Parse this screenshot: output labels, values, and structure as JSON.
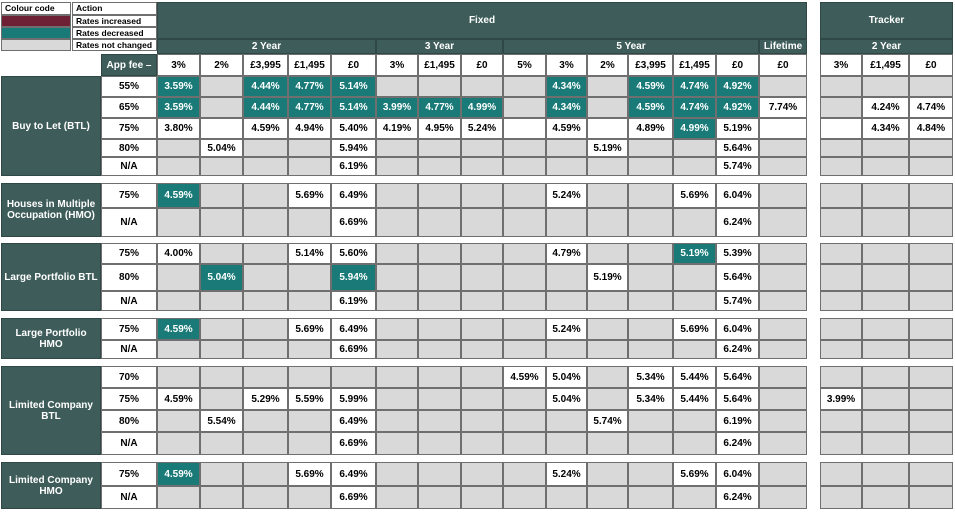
{
  "legend": {
    "header_col1": "Colour code",
    "header_col2": "Action",
    "items": [
      {
        "label": "Rates increased",
        "color": "#6e2134"
      },
      {
        "label": "Rates decreased",
        "color": "#197a78"
      },
      {
        "label": "Rates not changed",
        "color": "#d9d9d9"
      }
    ]
  },
  "header": {
    "fixed": "Fixed",
    "tracker": "Tracker",
    "app_fee_label": "App fee –",
    "fixed_groups": [
      "2 Year",
      "3 Year",
      "5 Year",
      "Lifetime"
    ],
    "tracker_groups": [
      "2 Year"
    ],
    "fixed_fees": [
      "3%",
      "2%",
      "£3,995",
      "£1,495",
      "£0",
      "3%",
      "£1,495",
      "£0",
      "5%",
      "3%",
      "2%",
      "£3,995",
      "£1,495",
      "£0",
      "£0"
    ],
    "tracker_fees": [
      "3%",
      "£1,495",
      "£0"
    ]
  },
  "colors": {
    "header": "#3e5d5a",
    "decreased": "#197a78",
    "increased": "#6e2134",
    "unchanged": "#d9d9d9"
  },
  "sections": [
    {
      "name": "Buy to Let (BTL)",
      "rows": [
        {
          "ltv": "55%",
          "fixed": [
            "3.59%",
            "",
            "4.44%",
            "4.77%",
            "5.14%",
            "",
            "",
            "",
            "",
            "4.34%",
            "",
            "4.59%",
            "4.74%",
            "4.92%",
            ""
          ],
          "fixed_state": [
            "d",
            "g",
            "d",
            "d",
            "d",
            "g",
            "g",
            "g",
            "g",
            "d",
            "g",
            "d",
            "d",
            "d",
            "g"
          ],
          "tracker": [
            "",
            "",
            ""
          ],
          "tracker_state": [
            "g",
            "g",
            "g"
          ]
        },
        {
          "ltv": "65%",
          "fixed": [
            "3.59%",
            "",
            "4.44%",
            "4.77%",
            "5.14%",
            "3.99%",
            "4.77%",
            "4.99%",
            "",
            "4.34%",
            "",
            "4.59%",
            "4.74%",
            "4.92%",
            "7.74%"
          ],
          "fixed_state": [
            "d",
            "g",
            "d",
            "d",
            "d",
            "d",
            "d",
            "d",
            "g",
            "d",
            "g",
            "d",
            "d",
            "d",
            "w"
          ],
          "tracker": [
            "",
            "4.24%",
            "4.74%"
          ],
          "tracker_state": [
            "g",
            "w",
            "w"
          ]
        },
        {
          "ltv": "75%",
          "fixed": [
            "3.80%",
            "",
            "4.59%",
            "4.94%",
            "5.40%",
            "4.19%",
            "4.95%",
            "5.24%",
            "",
            "4.59%",
            "",
            "4.89%",
            "4.99%",
            "5.19%",
            ""
          ],
          "fixed_state": [
            "w",
            "w",
            "w",
            "w",
            "w",
            "w",
            "w",
            "w",
            "w",
            "w",
            "w",
            "w",
            "d",
            "w",
            "w"
          ],
          "tracker": [
            "",
            "4.34%",
            "4.84%"
          ],
          "tracker_state": [
            "w",
            "w",
            "w"
          ]
        },
        {
          "ltv": "80%",
          "fixed": [
            "",
            "5.04%",
            "",
            "",
            "5.94%",
            "",
            "",
            "",
            "",
            "",
            "5.19%",
            "",
            "",
            "5.64%",
            ""
          ],
          "fixed_state": [
            "g",
            "w",
            "g",
            "g",
            "w",
            "g",
            "g",
            "g",
            "g",
            "g",
            "w",
            "g",
            "g",
            "w",
            "g"
          ],
          "tracker": [
            "",
            "",
            ""
          ],
          "tracker_state": [
            "g",
            "g",
            "g"
          ]
        },
        {
          "ltv": "N/A",
          "fixed": [
            "",
            "",
            "",
            "",
            "6.19%",
            "",
            "",
            "",
            "",
            "",
            "",
            "",
            "",
            "5.74%",
            ""
          ],
          "fixed_state": [
            "g",
            "g",
            "g",
            "g",
            "w",
            "g",
            "g",
            "g",
            "g",
            "g",
            "g",
            "g",
            "g",
            "w",
            "g"
          ],
          "tracker": [
            "",
            "",
            ""
          ],
          "tracker_state": [
            "g",
            "g",
            "g"
          ]
        }
      ]
    },
    {
      "name": "Houses in Multiple Occupation (HMO)",
      "rows": [
        {
          "ltv": "75%",
          "fixed": [
            "4.59%",
            "",
            "",
            "5.69%",
            "6.49%",
            "",
            "",
            "",
            "",
            "5.24%",
            "",
            "",
            "5.69%",
            "6.04%",
            ""
          ],
          "fixed_state": [
            "d",
            "g",
            "g",
            "w",
            "w",
            "g",
            "g",
            "g",
            "g",
            "w",
            "g",
            "g",
            "w",
            "w",
            "g"
          ],
          "tracker": [
            "",
            "",
            ""
          ],
          "tracker_state": [
            "g",
            "g",
            "g"
          ]
        },
        {
          "ltv": "N/A",
          "fixed": [
            "",
            "",
            "",
            "",
            "6.69%",
            "",
            "",
            "",
            "",
            "",
            "",
            "",
            "",
            "6.24%",
            ""
          ],
          "fixed_state": [
            "g",
            "g",
            "g",
            "g",
            "w",
            "g",
            "g",
            "g",
            "g",
            "g",
            "g",
            "g",
            "g",
            "w",
            "g"
          ],
          "tracker": [
            "",
            "",
            ""
          ],
          "tracker_state": [
            "g",
            "g",
            "g"
          ]
        }
      ]
    },
    {
      "name": "Large Portfolio BTL",
      "rows": [
        {
          "ltv": "75%",
          "fixed": [
            "4.00%",
            "",
            "",
            "5.14%",
            "5.60%",
            "",
            "",
            "",
            "",
            "4.79%",
            "",
            "",
            "5.19%",
            "5.39%",
            ""
          ],
          "fixed_state": [
            "w",
            "g",
            "g",
            "w",
            "w",
            "g",
            "g",
            "g",
            "g",
            "w",
            "g",
            "g",
            "d",
            "w",
            "g"
          ],
          "tracker": [
            "",
            "",
            ""
          ],
          "tracker_state": [
            "g",
            "g",
            "g"
          ]
        },
        {
          "ltv": "80%",
          "fixed": [
            "",
            "5.04%",
            "",
            "",
            "5.94%",
            "",
            "",
            "",
            "",
            "",
            "5.19%",
            "",
            "",
            "5.64%",
            ""
          ],
          "fixed_state": [
            "g",
            "d",
            "g",
            "g",
            "d",
            "g",
            "g",
            "g",
            "g",
            "g",
            "w",
            "g",
            "g",
            "w",
            "g"
          ],
          "tracker": [
            "",
            "",
            ""
          ],
          "tracker_state": [
            "g",
            "g",
            "g"
          ]
        },
        {
          "ltv": "N/A",
          "fixed": [
            "",
            "",
            "",
            "",
            "6.19%",
            "",
            "",
            "",
            "",
            "",
            "",
            "",
            "",
            "5.74%",
            ""
          ],
          "fixed_state": [
            "g",
            "g",
            "g",
            "g",
            "w",
            "g",
            "g",
            "g",
            "g",
            "g",
            "g",
            "g",
            "g",
            "w",
            "g"
          ],
          "tracker": [
            "",
            "",
            ""
          ],
          "tracker_state": [
            "g",
            "g",
            "g"
          ]
        }
      ]
    },
    {
      "name": "Large Portfolio HMO",
      "rows": [
        {
          "ltv": "75%",
          "fixed": [
            "4.59%",
            "",
            "",
            "5.69%",
            "6.49%",
            "",
            "",
            "",
            "",
            "5.24%",
            "",
            "",
            "5.69%",
            "6.04%",
            ""
          ],
          "fixed_state": [
            "d",
            "g",
            "g",
            "w",
            "w",
            "g",
            "g",
            "g",
            "g",
            "w",
            "g",
            "g",
            "w",
            "w",
            "g"
          ],
          "tracker": [
            "",
            "",
            ""
          ],
          "tracker_state": [
            "g",
            "g",
            "g"
          ]
        },
        {
          "ltv": "N/A",
          "fixed": [
            "",
            "",
            "",
            "",
            "6.69%",
            "",
            "",
            "",
            "",
            "",
            "",
            "",
            "",
            "6.24%",
            ""
          ],
          "fixed_state": [
            "g",
            "g",
            "g",
            "g",
            "w",
            "g",
            "g",
            "g",
            "g",
            "g",
            "g",
            "g",
            "g",
            "w",
            "g"
          ],
          "tracker": [
            "",
            "",
            ""
          ],
          "tracker_state": [
            "g",
            "g",
            "g"
          ]
        }
      ]
    },
    {
      "name": "Limited Company BTL",
      "rows": [
        {
          "ltv": "70%",
          "fixed": [
            "",
            "",
            "",
            "",
            "",
            "",
            "",
            "",
            "4.59%",
            "5.04%",
            "",
            "5.34%",
            "5.44%",
            "5.64%",
            ""
          ],
          "fixed_state": [
            "g",
            "g",
            "g",
            "g",
            "g",
            "g",
            "g",
            "g",
            "w",
            "w",
            "g",
            "w",
            "w",
            "w",
            "g"
          ],
          "tracker": [
            "",
            "",
            ""
          ],
          "tracker_state": [
            "g",
            "g",
            "g"
          ]
        },
        {
          "ltv": "75%",
          "fixed": [
            "4.59%",
            "",
            "5.29%",
            "5.59%",
            "5.99%",
            "",
            "",
            "",
            "",
            "5.04%",
            "",
            "5.34%",
            "5.44%",
            "5.64%",
            ""
          ],
          "fixed_state": [
            "w",
            "g",
            "w",
            "w",
            "w",
            "g",
            "g",
            "g",
            "g",
            "w",
            "g",
            "w",
            "w",
            "w",
            "g"
          ],
          "tracker": [
            "3.99%",
            "",
            ""
          ],
          "tracker_state": [
            "w",
            "g",
            "g"
          ]
        },
        {
          "ltv": "80%",
          "fixed": [
            "",
            "5.54%",
            "",
            "",
            "6.49%",
            "",
            "",
            "",
            "",
            "",
            "5.74%",
            "",
            "",
            "6.19%",
            ""
          ],
          "fixed_state": [
            "g",
            "w",
            "g",
            "g",
            "w",
            "g",
            "g",
            "g",
            "g",
            "g",
            "w",
            "g",
            "g",
            "w",
            "g"
          ],
          "tracker": [
            "",
            "",
            ""
          ],
          "tracker_state": [
            "g",
            "g",
            "g"
          ]
        },
        {
          "ltv": "N/A",
          "fixed": [
            "",
            "",
            "",
            "",
            "6.69%",
            "",
            "",
            "",
            "",
            "",
            "",
            "",
            "",
            "6.24%",
            ""
          ],
          "fixed_state": [
            "g",
            "g",
            "g",
            "g",
            "w",
            "g",
            "g",
            "g",
            "g",
            "g",
            "g",
            "g",
            "g",
            "w",
            "g"
          ],
          "tracker": [
            "",
            "",
            ""
          ],
          "tracker_state": [
            "g",
            "g",
            "g"
          ]
        }
      ]
    },
    {
      "name": "Limited Company HMO",
      "rows": [
        {
          "ltv": "75%",
          "fixed": [
            "4.59%",
            "",
            "",
            "5.69%",
            "6.49%",
            "",
            "",
            "",
            "",
            "5.24%",
            "",
            "",
            "5.69%",
            "6.04%",
            ""
          ],
          "fixed_state": [
            "d",
            "g",
            "g",
            "w",
            "w",
            "g",
            "g",
            "g",
            "g",
            "w",
            "g",
            "g",
            "w",
            "w",
            "g"
          ],
          "tracker": [
            "",
            "",
            ""
          ],
          "tracker_state": [
            "g",
            "g",
            "g"
          ]
        },
        {
          "ltv": "N/A",
          "fixed": [
            "",
            "",
            "",
            "",
            "6.69%",
            "",
            "",
            "",
            "",
            "",
            "",
            "",
            "",
            "6.24%",
            ""
          ],
          "fixed_state": [
            "g",
            "g",
            "g",
            "g",
            "w",
            "g",
            "g",
            "g",
            "g",
            "g",
            "g",
            "g",
            "g",
            "w",
            "g"
          ],
          "tracker": [
            "",
            "",
            ""
          ],
          "tracker_state": [
            "g",
            "g",
            "g"
          ]
        }
      ]
    }
  ]
}
